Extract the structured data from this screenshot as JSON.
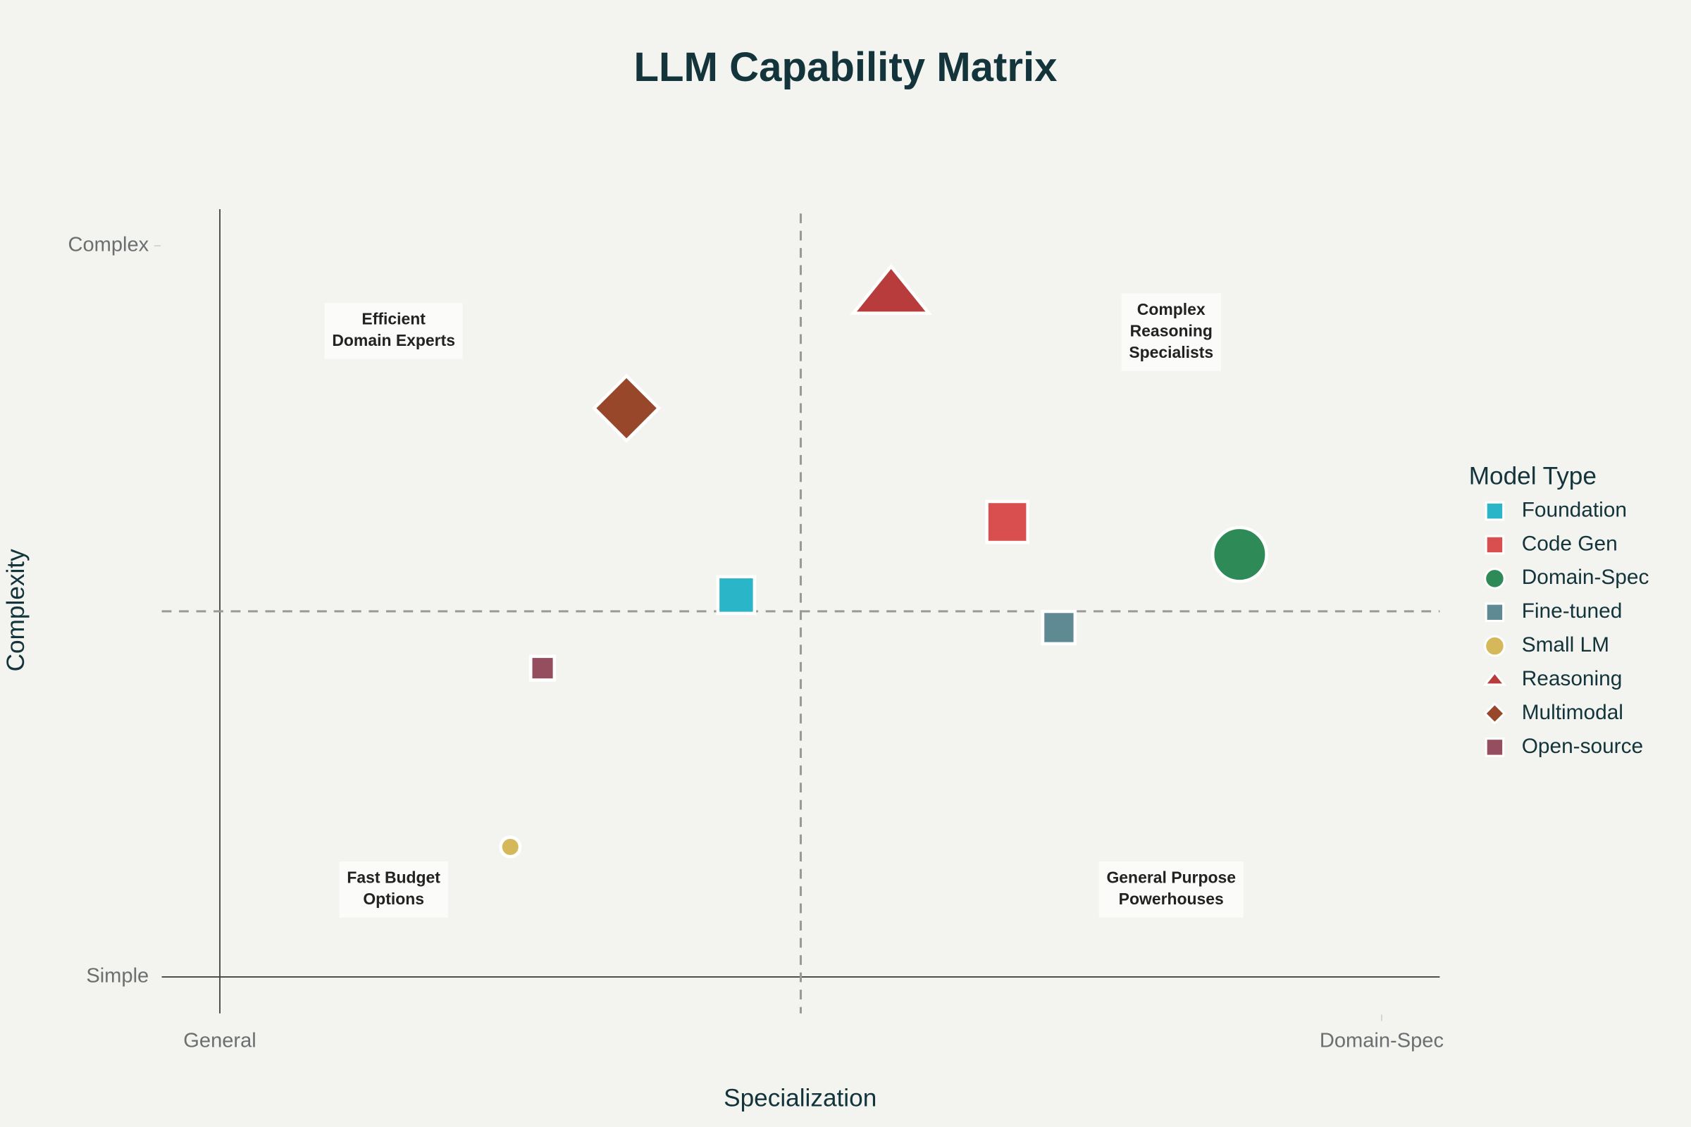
{
  "chart_data": {
    "type": "scatter",
    "title": "LLM Capability Matrix",
    "x_label": "Specialization",
    "y_label": "Complexity",
    "legend_title": "Model Type",
    "legend_position": "right",
    "xlim": [
      0.55,
      10.45
    ],
    "ylim": [
      0.55,
      10.45
    ],
    "xticks": [
      {
        "value": 1,
        "label": "General"
      },
      {
        "value": 10,
        "label": "Domain-Spec"
      }
    ],
    "yticks": [
      {
        "value": 1,
        "label": "Simple"
      },
      {
        "value": 10,
        "label": "Complex"
      }
    ],
    "reference_lines": {
      "x": 5.5,
      "y": 5.5
    },
    "series": [
      {
        "name": "Foundation",
        "color": "#2bb5c9",
        "symbol": "square",
        "size": 34,
        "x": [
          5.0
        ],
        "values": [
          5.7
        ]
      },
      {
        "name": "Code Gen",
        "color": "#d94f4f",
        "symbol": "square",
        "size": 38,
        "x": [
          7.1
        ],
        "values": [
          6.6
        ]
      },
      {
        "name": "Domain-Spec",
        "color": "#2e8b57",
        "symbol": "circle",
        "size": 50,
        "x": [
          8.9
        ],
        "values": [
          6.2
        ]
      },
      {
        "name": "Fine-tuned",
        "color": "#5f8a94",
        "symbol": "square",
        "size": 30,
        "x": [
          7.5
        ],
        "values": [
          5.3
        ]
      },
      {
        "name": "Small LM",
        "color": "#d4b85a",
        "symbol": "circle",
        "size": 18,
        "x": [
          3.25
        ],
        "values": [
          2.6
        ]
      },
      {
        "name": "Reasoning",
        "color": "#b83c3c",
        "symbol": "triangle",
        "size": 70,
        "x": [
          6.2
        ],
        "values": [
          9.4
        ]
      },
      {
        "name": "Multimodal",
        "color": "#99472a",
        "symbol": "diamond",
        "size": 60,
        "x": [
          4.15
        ],
        "values": [
          8.0
        ]
      },
      {
        "name": "Open-source",
        "color": "#944e5e",
        "symbol": "square",
        "size": 22,
        "x": [
          3.5
        ],
        "values": [
          4.8
        ]
      }
    ],
    "annotations": [
      {
        "lines": [
          "Efficient",
          "Domain Experts"
        ]
      },
      {
        "lines": [
          "Complex",
          "Reasoning",
          "Specialists"
        ]
      },
      {
        "lines": [
          "Fast Budget",
          "Options"
        ]
      },
      {
        "lines": [
          "General Purpose",
          "Powerhouses"
        ]
      }
    ]
  }
}
